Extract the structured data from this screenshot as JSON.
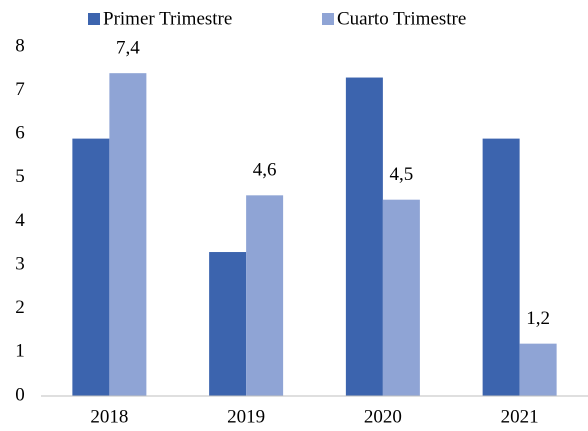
{
  "chart_data": {
    "type": "bar",
    "categories": [
      "2018",
      "2019",
      "2020",
      "2021"
    ],
    "series": [
      {
        "name": "Primer Trimestre",
        "color": "#3c64ae",
        "values": [
          5.9,
          3.3,
          7.3,
          5.9
        ]
      },
      {
        "name": "Cuarto Trimestre",
        "color": "#8fa4d5",
        "values": [
          7.4,
          4.6,
          4.5,
          1.2
        ],
        "value_labels": [
          "7,4",
          "4,6",
          "4,5",
          "1,2"
        ]
      }
    ],
    "ylim": [
      0,
      8
    ],
    "yticks": [
      0,
      1,
      2,
      3,
      4,
      5,
      6,
      7,
      8
    ],
    "grid": false,
    "legend": "top"
  }
}
